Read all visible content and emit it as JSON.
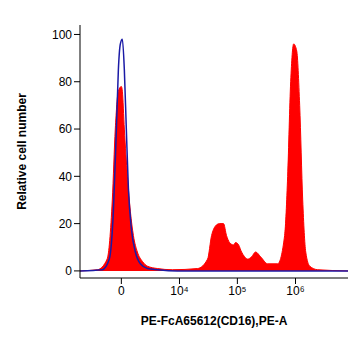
{
  "chart_data": {
    "type": "area",
    "xlabel": "PE-FcA65612(CD16),PE-A",
    "ylabel": "Relative cell number",
    "log": "x",
    "xlim": [
      -5000,
      8000000
    ],
    "xticks": [
      0,
      {
        "value": 10000,
        "label": "10⁴"
      },
      {
        "value": 100000,
        "label": "10⁵"
      },
      {
        "value": 1000000,
        "label": "10⁶"
      }
    ],
    "ylim": [
      -3,
      104
    ],
    "yticks": [
      0,
      20,
      40,
      60,
      80,
      100
    ],
    "grid": false,
    "series": [
      {
        "type": "area",
        "color": "#ff0000",
        "x": [
          -5000,
          -2200,
          -1200,
          -740,
          -490,
          -240,
          0,
          80,
          240,
          490,
          740,
          1000,
          1370,
          1890,
          2480,
          3980,
          7510,
          20600,
          30700,
          36000,
          42000,
          49300,
          57700,
          65000,
          73400,
          85900,
          93000,
          105000,
          118000,
          133000,
          150000,
          176000,
          206000,
          251000,
          332000,
          493000,
          650000,
          733000,
          826000,
          930000,
          1050000,
          1180000,
          1330000,
          1500000,
          1760000,
          2410000,
          8000000
        ],
        "values": [
          0,
          0.5,
          5,
          30,
          60,
          76,
          78,
          76,
          60,
          40,
          25,
          15,
          8,
          4,
          2,
          1,
          0.5,
          1,
          5,
          15,
          19,
          20,
          20,
          15,
          12,
          11,
          12,
          11,
          8,
          6,
          5,
          6,
          8,
          6,
          3,
          3,
          15,
          40,
          80,
          96,
          93,
          70,
          30,
          8,
          2,
          0.5,
          0
        ]
      },
      {
        "type": "line",
        "color": "#1a1aa6",
        "x": [
          -5000,
          -1670,
          -1000,
          -650,
          -400,
          -240,
          -80,
          80,
          240,
          400,
          570,
          820,
          1180,
          1670,
          2480,
          3980,
          9200,
          8000000
        ],
        "values": [
          0,
          0.5,
          5,
          25,
          60,
          85,
          96,
          98,
          85,
          60,
          35,
          18,
          8,
          3,
          1,
          0.5,
          0,
          0
        ]
      }
    ]
  }
}
